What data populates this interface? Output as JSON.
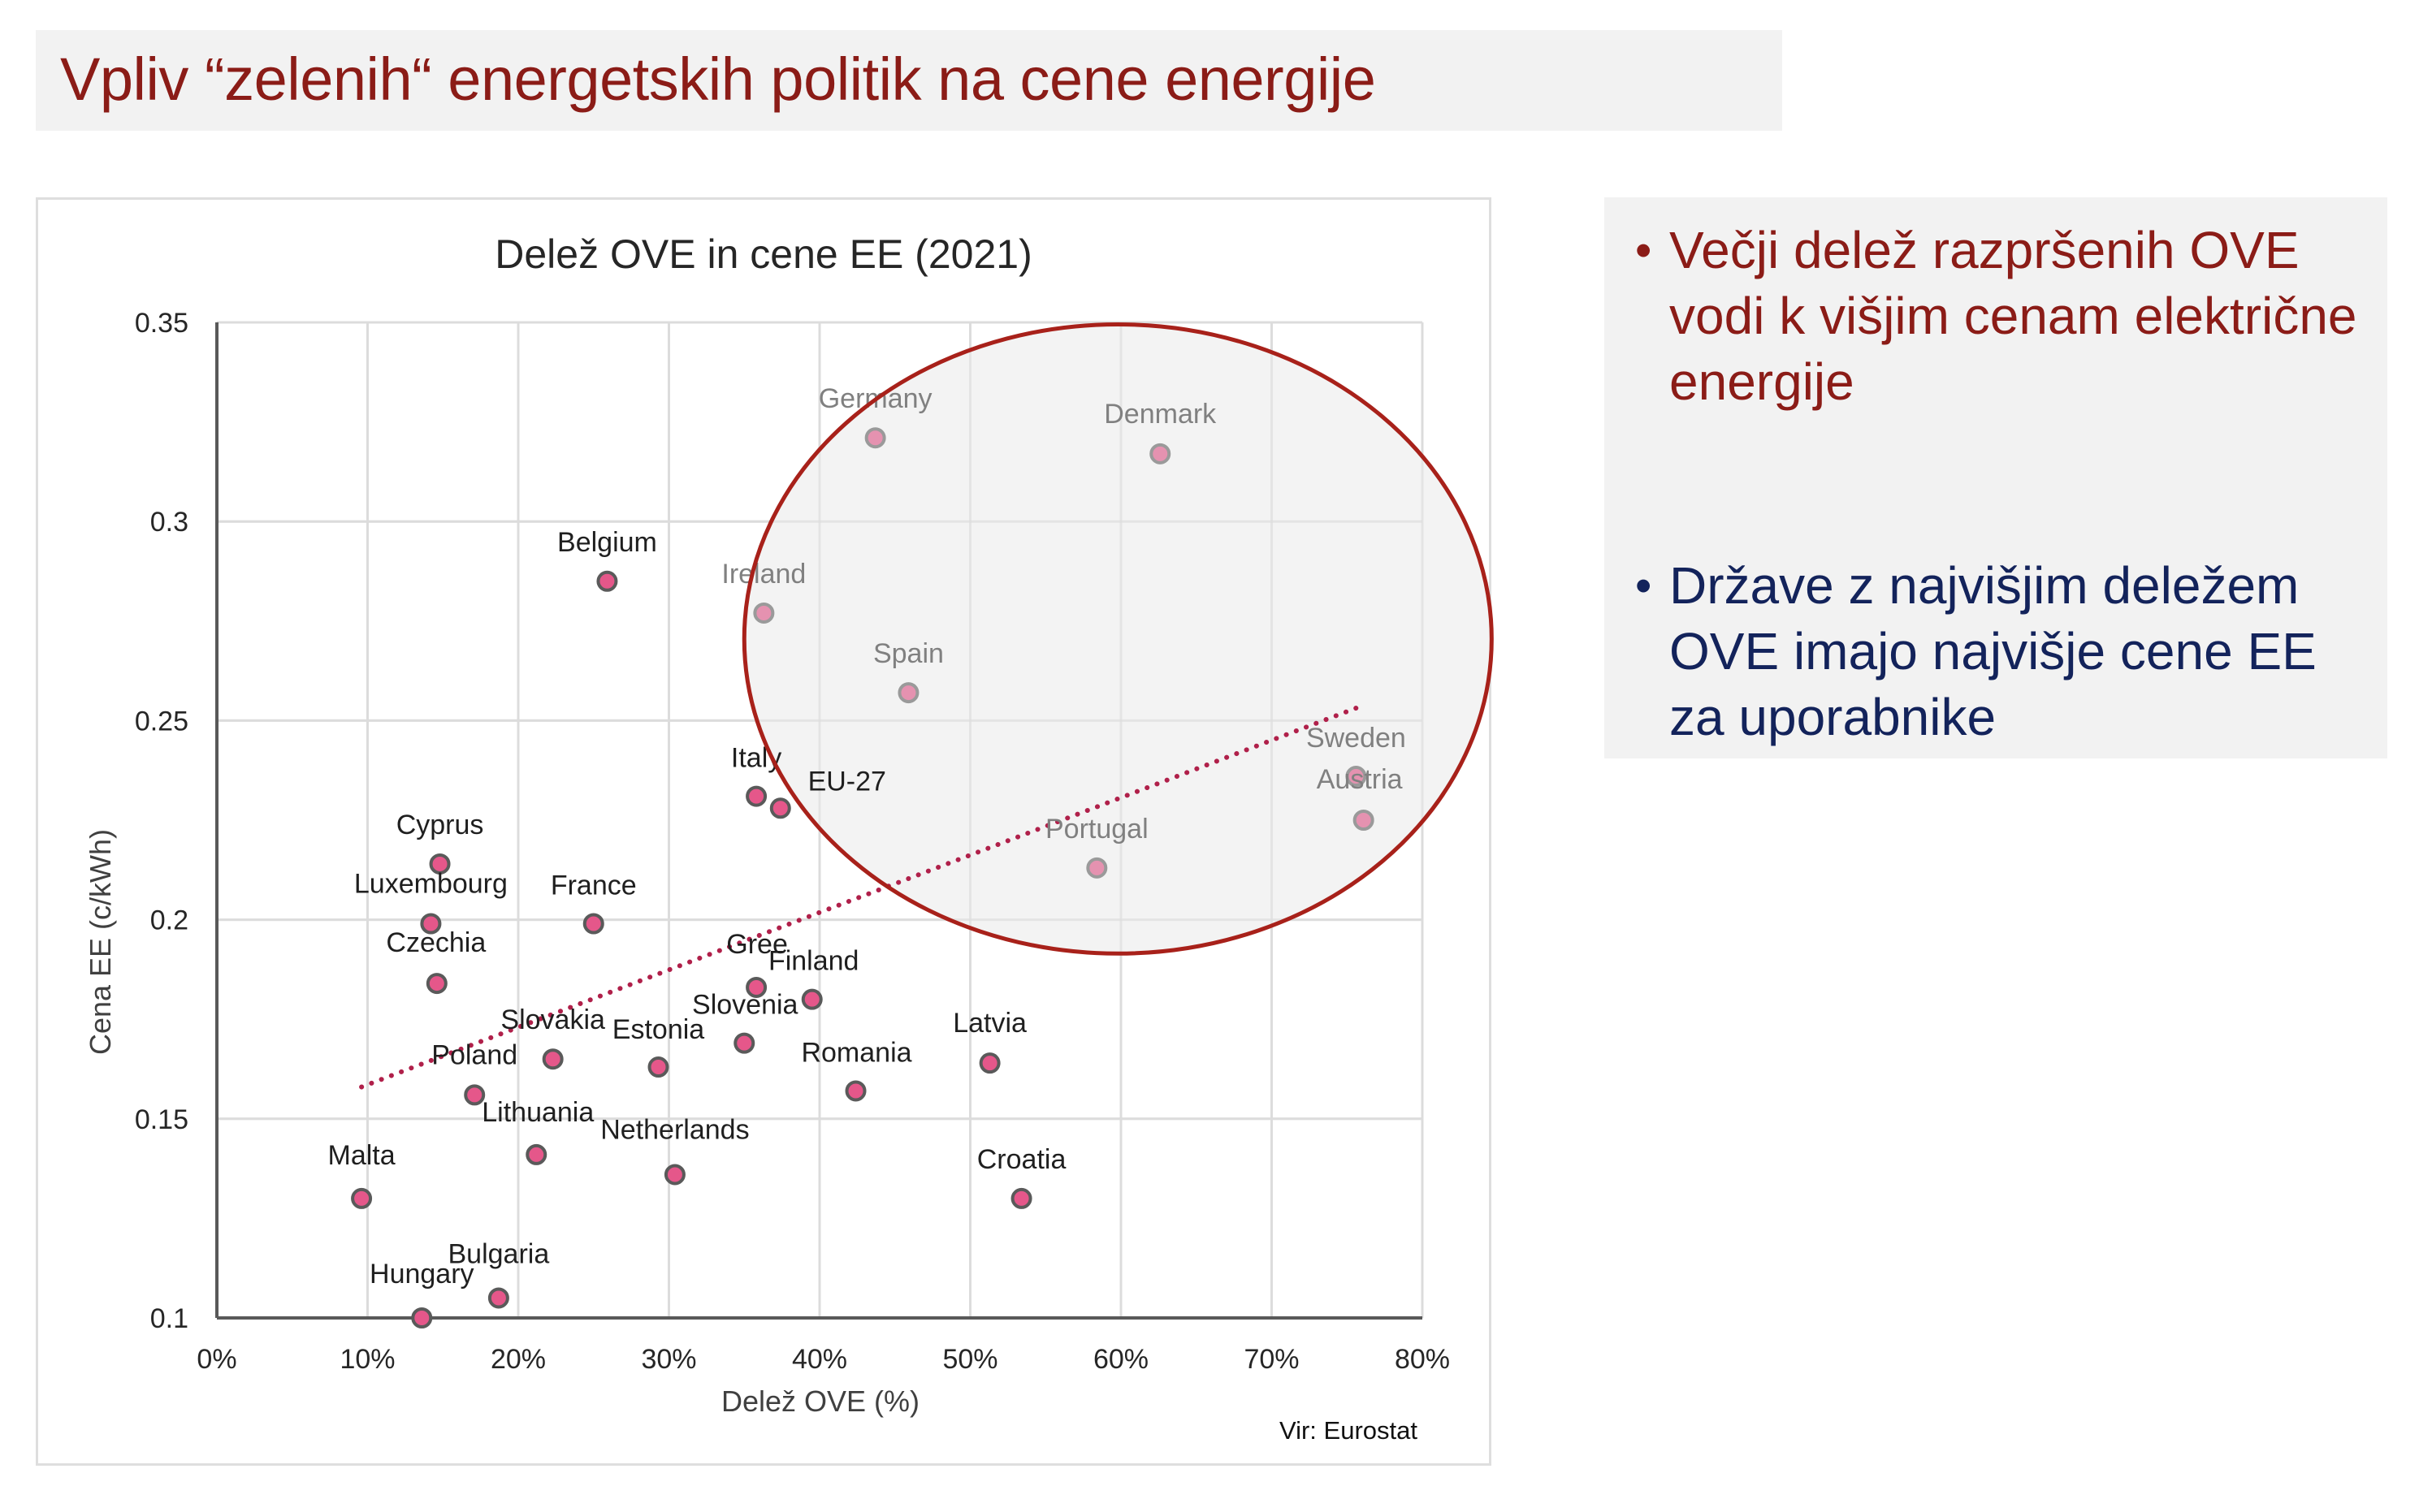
{
  "header": {
    "title": "Vpliv “zelenih“ energetskih politik na cene energije"
  },
  "side_panel": {
    "bullets": [
      {
        "symbol": "•",
        "text": "Večji delež razpršenih OVE vodi k višjim cenam električne energije",
        "color": "#8b1c17"
      },
      {
        "symbol": "•",
        "text": "Države z najvišjim deležem OVE imajo najvišje cene EE za uporabnike",
        "color": "#13235b"
      }
    ]
  },
  "colors": {
    "title_red": "#8b1c17",
    "bullet_navy": "#13235b",
    "point_fill": "#e5578a",
    "point_fill_highlighted": "#e592b0",
    "point_stroke": "#5a5a5a",
    "trendline": "#b0204a",
    "ellipse_stroke": "#a8211a",
    "ellipse_fill": "#f2f2f2"
  },
  "chart_data": {
    "type": "scatter",
    "title": "Delež OVE in cene EE (2021)",
    "xlabel": "Delež OVE (%)",
    "ylabel": "Cena EE (c/kWh)",
    "source": "Vir: Eurostat",
    "xlim": [
      0,
      80
    ],
    "ylim": [
      0.1,
      0.35
    ],
    "x_ticks": [
      0,
      10,
      20,
      30,
      40,
      50,
      60,
      70,
      80
    ],
    "x_tick_labels": [
      "0%",
      "10%",
      "20%",
      "30%",
      "40%",
      "50%",
      "60%",
      "70%",
      "80%"
    ],
    "y_ticks": [
      0.1,
      0.15,
      0.2,
      0.25,
      0.3,
      0.35
    ],
    "y_tick_labels": [
      "0.1",
      "0.15",
      "0.2",
      "0.25",
      "0.3",
      "0.35"
    ],
    "grid": true,
    "points": [
      {
        "label": "Germany",
        "x": 43.7,
        "y": 0.321,
        "highlighted": true
      },
      {
        "label": "Denmark",
        "x": 62.6,
        "y": 0.317,
        "highlighted": true
      },
      {
        "label": "Belgium",
        "x": 25.9,
        "y": 0.285,
        "highlighted": false
      },
      {
        "label": "Ireland",
        "x": 36.3,
        "y": 0.277,
        "highlighted": true
      },
      {
        "label": "Spain",
        "x": 45.9,
        "y": 0.257,
        "highlighted": true
      },
      {
        "label": "Sweden",
        "x": 75.6,
        "y": 0.236,
        "highlighted": true
      },
      {
        "label": "Italy",
        "x": 35.8,
        "y": 0.231,
        "highlighted": false
      },
      {
        "label": "EU-27",
        "x": 37.4,
        "y": 0.228,
        "highlighted": false
      },
      {
        "label": "Austria",
        "x": 76.1,
        "y": 0.225,
        "highlighted": true
      },
      {
        "label": "Cyprus",
        "x": 14.8,
        "y": 0.214,
        "highlighted": false
      },
      {
        "label": "Portugal",
        "x": 58.4,
        "y": 0.213,
        "highlighted": true
      },
      {
        "label": "Luxembourg",
        "x": 14.2,
        "y": 0.199,
        "highlighted": false
      },
      {
        "label": "France",
        "x": 25.0,
        "y": 0.199,
        "highlighted": false
      },
      {
        "label": "Czechia",
        "x": 14.6,
        "y": 0.184,
        "highlighted": false
      },
      {
        "label": "Gree",
        "x": 35.8,
        "y": 0.183,
        "highlighted": false
      },
      {
        "label": "Finland",
        "x": 39.5,
        "y": 0.18,
        "highlighted": false
      },
      {
        "label": "Slovenia",
        "x": 35.0,
        "y": 0.169,
        "highlighted": false
      },
      {
        "label": "Slovakia",
        "x": 22.3,
        "y": 0.165,
        "highlighted": false
      },
      {
        "label": "Latvia",
        "x": 51.3,
        "y": 0.164,
        "highlighted": false
      },
      {
        "label": "Estonia",
        "x": 29.3,
        "y": 0.163,
        "highlighted": false
      },
      {
        "label": "Romania",
        "x": 42.4,
        "y": 0.157,
        "highlighted": false
      },
      {
        "label": "Poland",
        "x": 17.1,
        "y": 0.156,
        "highlighted": false
      },
      {
        "label": "Lithuania",
        "x": 21.2,
        "y": 0.141,
        "highlighted": false
      },
      {
        "label": "Netherlands",
        "x": 30.4,
        "y": 0.136,
        "highlighted": false
      },
      {
        "label": "Malta",
        "x": 9.6,
        "y": 0.13,
        "highlighted": false
      },
      {
        "label": "Croatia",
        "x": 53.4,
        "y": 0.13,
        "highlighted": false
      },
      {
        "label": "Bulgaria",
        "x": 18.7,
        "y": 0.105,
        "highlighted": false
      },
      {
        "label": "Hungary",
        "x": 13.6,
        "y": 0.1,
        "highlighted": false
      }
    ],
    "trendline": {
      "type": "linear",
      "style": "dotted",
      "x": [
        9.6,
        76.2
      ],
      "y": [
        0.158,
        0.254
      ]
    },
    "annotation": {
      "type": "ellipse",
      "center_x": 59.8,
      "center_y": 0.2705,
      "radius_x": 24.8,
      "radius_y": 0.079
    }
  }
}
